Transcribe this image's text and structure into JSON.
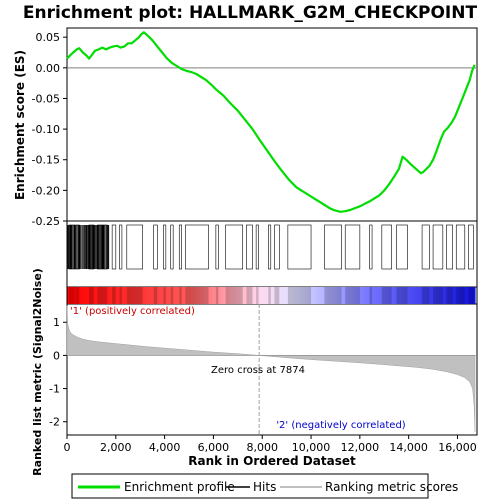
{
  "chart_data": {
    "type": "line",
    "title": "Enrichment plot: HALLMARK_G2M_CHECKPOINT",
    "xlabel": "Rank in Ordered Dataset",
    "xlim": [
      0,
      16800
    ],
    "x_ticks": [
      "0",
      "2,000",
      "4,000",
      "6,000",
      "8,000",
      "10,000",
      "12,000",
      "14,000",
      "16,000"
    ],
    "panels": {
      "enrichment": {
        "ylabel": "Enrichment score (ES)",
        "ylim": [
          -0.25,
          0.065
        ],
        "y_ticks": [
          "0.05",
          "0.00",
          "-0.05",
          "-0.10",
          "-0.15",
          "-0.20",
          "-0.25"
        ],
        "series": [
          {
            "name": "Enrichment profile",
            "color": "#00dd00",
            "x": [
              0,
              120,
              250,
              400,
              500,
              650,
              800,
              900,
              1000,
              1150,
              1300,
              1450,
              1600,
              1750,
              1900,
              2050,
              2200,
              2350,
              2500,
              2650,
              2800,
              2950,
              3050,
              3150,
              3300,
              3500,
              3700,
              3900,
              4100,
              4300,
              4500,
              4700,
              4900,
              5100,
              5300,
              5500,
              5700,
              5900,
              6100,
              6400,
              6700,
              7000,
              7300,
              7600,
              7900,
              8200,
              8500,
              8800,
              9100,
              9400,
              9600,
              9800,
              10000,
              10200,
              10400,
              10600,
              10800,
              11000,
              11200,
              11400,
              11600,
              11800,
              12000,
              12200,
              12400,
              12600,
              12800,
              13000,
              13200,
              13400,
              13600,
              13750,
              13900,
              14100,
              14300,
              14500,
              14600,
              14700,
              14850,
              15000,
              15150,
              15300,
              15450,
              15600,
              15750,
              15900,
              16050,
              16200,
              16350,
              16500,
              16600,
              16700
            ],
            "y": [
              0.015,
              0.02,
              0.025,
              0.03,
              0.032,
              0.025,
              0.02,
              0.015,
              0.02,
              0.028,
              0.03,
              0.033,
              0.03,
              0.033,
              0.035,
              0.036,
              0.033,
              0.035,
              0.04,
              0.04,
              0.045,
              0.05,
              0.055,
              0.058,
              0.053,
              0.045,
              0.035,
              0.025,
              0.015,
              0.008,
              0.003,
              -0.002,
              -0.005,
              -0.007,
              -0.01,
              -0.015,
              -0.02,
              -0.027,
              -0.035,
              -0.045,
              -0.058,
              -0.07,
              -0.085,
              -0.1,
              -0.118,
              -0.135,
              -0.152,
              -0.168,
              -0.183,
              -0.195,
              -0.2,
              -0.205,
              -0.21,
              -0.215,
              -0.22,
              -0.225,
              -0.23,
              -0.233,
              -0.235,
              -0.234,
              -0.232,
              -0.229,
              -0.226,
              -0.222,
              -0.218,
              -0.213,
              -0.208,
              -0.2,
              -0.19,
              -0.178,
              -0.165,
              -0.145,
              -0.15,
              -0.158,
              -0.165,
              -0.172,
              -0.17,
              -0.166,
              -0.16,
              -0.15,
              -0.135,
              -0.118,
              -0.104,
              -0.098,
              -0.09,
              -0.08,
              -0.065,
              -0.05,
              -0.035,
              -0.02,
              -0.005,
              0.005
            ]
          }
        ]
      },
      "metric": {
        "ylabel": "Ranked list metric (Signal2Noise)",
        "ylim": [
          -2.4,
          1.55
        ],
        "y_ticks": [
          "1",
          "0",
          "-1",
          "-2"
        ],
        "series": [
          {
            "name": "Ranking metric scores",
            "color": "#c0c0c0",
            "x": [
              0,
              30,
              80,
              150,
              250,
              400,
              600,
              900,
              1300,
              1800,
              2500,
              3200,
              4000,
              5000,
              6000,
              7000,
              7874,
              8500,
              9500,
              10500,
              11500,
              12500,
              13500,
              14300,
              15000,
              15600,
              16000,
              16300,
              16500,
              16620,
              16680,
              16720
            ],
            "y": [
              1.5,
              0.95,
              0.78,
              0.68,
              0.62,
              0.56,
              0.5,
              0.45,
              0.41,
              0.37,
              0.32,
              0.27,
              0.22,
              0.16,
              0.1,
              0.05,
              0.0,
              -0.04,
              -0.1,
              -0.15,
              -0.2,
              -0.25,
              -0.31,
              -0.36,
              -0.42,
              -0.5,
              -0.58,
              -0.67,
              -0.8,
              -1.0,
              -1.5,
              -2.3
            ]
          }
        ]
      }
    },
    "hit_bands": [
      [
        80,
        320
      ],
      [
        350,
        500
      ],
      [
        900,
        1100
      ],
      [
        1250,
        1650
      ],
      [
        1850,
        2000
      ],
      [
        2150,
        2250
      ],
      [
        2450,
        3100
      ],
      [
        3550,
        3700
      ],
      [
        3950,
        4050
      ],
      [
        4250,
        4350
      ],
      [
        4600,
        4700
      ],
      [
        4850,
        5800
      ],
      [
        6100,
        6200
      ],
      [
        6500,
        7200
      ],
      [
        7350,
        7600
      ],
      [
        7750,
        7850
      ],
      [
        8250,
        8350
      ],
      [
        8500,
        8700
      ],
      [
        9050,
        10000
      ],
      [
        10550,
        11250
      ],
      [
        11400,
        12000
      ],
      [
        12400,
        12500
      ],
      [
        12900,
        13300
      ],
      [
        13500,
        13950
      ],
      [
        14550,
        14850
      ],
      [
        15000,
        15400
      ],
      [
        15550,
        15800
      ],
      [
        15950,
        16300
      ],
      [
        16450,
        16650
      ]
    ],
    "hit_bars": [
      8,
      22,
      55,
      110,
      135,
      160,
      180,
      205,
      250,
      295,
      330,
      375,
      420,
      470,
      490,
      520,
      560,
      610,
      655,
      700,
      740,
      780,
      810,
      850,
      880,
      905,
      935,
      965,
      1000,
      1040,
      1070,
      1100,
      1130,
      1160,
      1200,
      1240,
      1270,
      1300,
      1340,
      1380,
      1410,
      1440,
      1470,
      1490,
      1510,
      1550,
      1600,
      1640,
      1680,
      1710
    ],
    "annotations": {
      "positive": "'1' (positively correlated)",
      "negative": "'2' (negatively correlated)",
      "zero_cross": "Zero cross at 7874",
      "zero_cross_rank": 7874
    },
    "legend": {
      "placement": "bottom",
      "items": [
        "Enrichment profile",
        "Hits",
        "Ranking metric scores"
      ]
    },
    "colors": {
      "profile": "#00dd00",
      "hits": "#000000",
      "metric": "#c0c0c0",
      "positive_text": "#cc0000",
      "negative_text": "#0000cc",
      "grid_zero": "#808080"
    }
  }
}
